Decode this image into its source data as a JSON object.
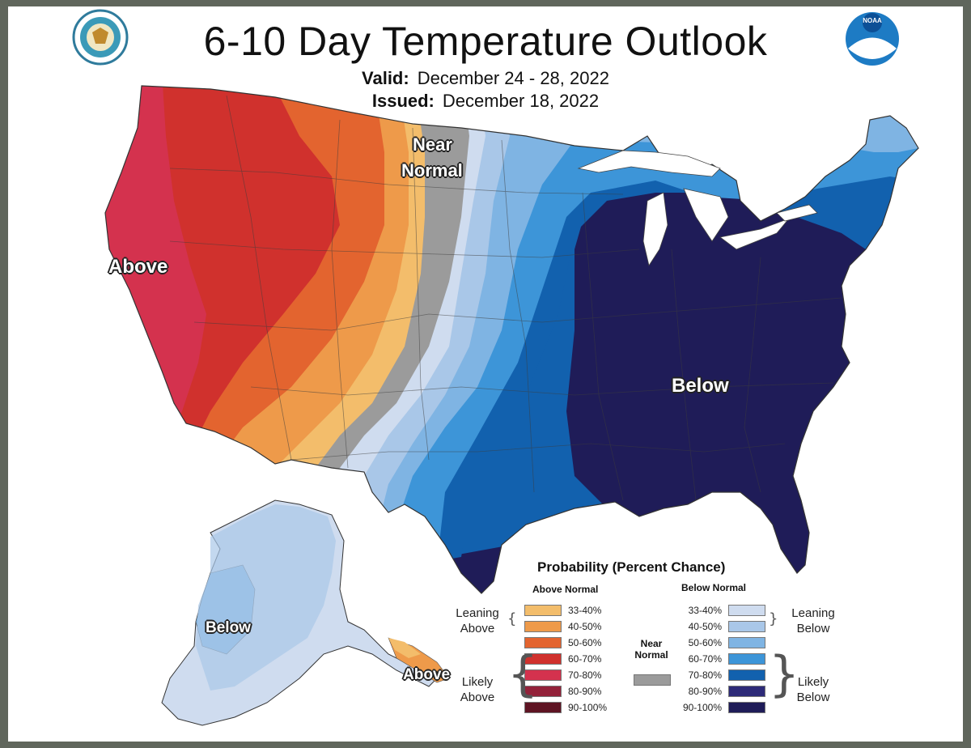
{
  "header": {
    "title": "6-10 Day Temperature Outlook",
    "valid_label": "Valid:",
    "valid_value": "December 24 - 28, 2022",
    "issued_label": "Issued:",
    "issued_value": "December 18, 2022"
  },
  "logos": {
    "left": "doc-seal-logo",
    "right_text": "NOAA"
  },
  "regions": {
    "above": "Above",
    "near_normal_1": "Near",
    "near_normal_2": "Normal",
    "below_east": "Below",
    "below_alaska": "Below",
    "above_alaska": "Above"
  },
  "legend": {
    "title": "Probability (Percent Chance)",
    "above_header": "Above Normal",
    "below_header": "Below Normal",
    "near_1": "Near",
    "near_2": "Normal",
    "near_color": "#9b9b9b",
    "leaning_above": [
      "Leaning",
      "Above"
    ],
    "likely_above": [
      "Likely",
      "Above"
    ],
    "leaning_below": [
      "Leaning",
      "Below"
    ],
    "likely_below": [
      "Likely",
      "Below"
    ],
    "above_bins": [
      {
        "label": "33-40%",
        "color": "#f3bd6b"
      },
      {
        "label": "40-50%",
        "color": "#ee9a4a"
      },
      {
        "label": "50-60%",
        "color": "#e3642f"
      },
      {
        "label": "60-70%",
        "color": "#d0312d"
      },
      {
        "label": "70-80%",
        "color": "#d4324e"
      },
      {
        "label": "80-90%",
        "color": "#93223a"
      },
      {
        "label": "90-100%",
        "color": "#5e1423"
      }
    ],
    "below_bins": [
      {
        "label": "33-40%",
        "color": "#cfdcef"
      },
      {
        "label": "40-50%",
        "color": "#a9c7e8"
      },
      {
        "label": "50-60%",
        "color": "#7fb4e3"
      },
      {
        "label": "60-70%",
        "color": "#3d95d8"
      },
      {
        "label": "70-80%",
        "color": "#1261ae"
      },
      {
        "label": "80-90%",
        "color": "#2d2a78"
      },
      {
        "label": "90-100%",
        "color": "#1f1c58"
      }
    ]
  }
}
